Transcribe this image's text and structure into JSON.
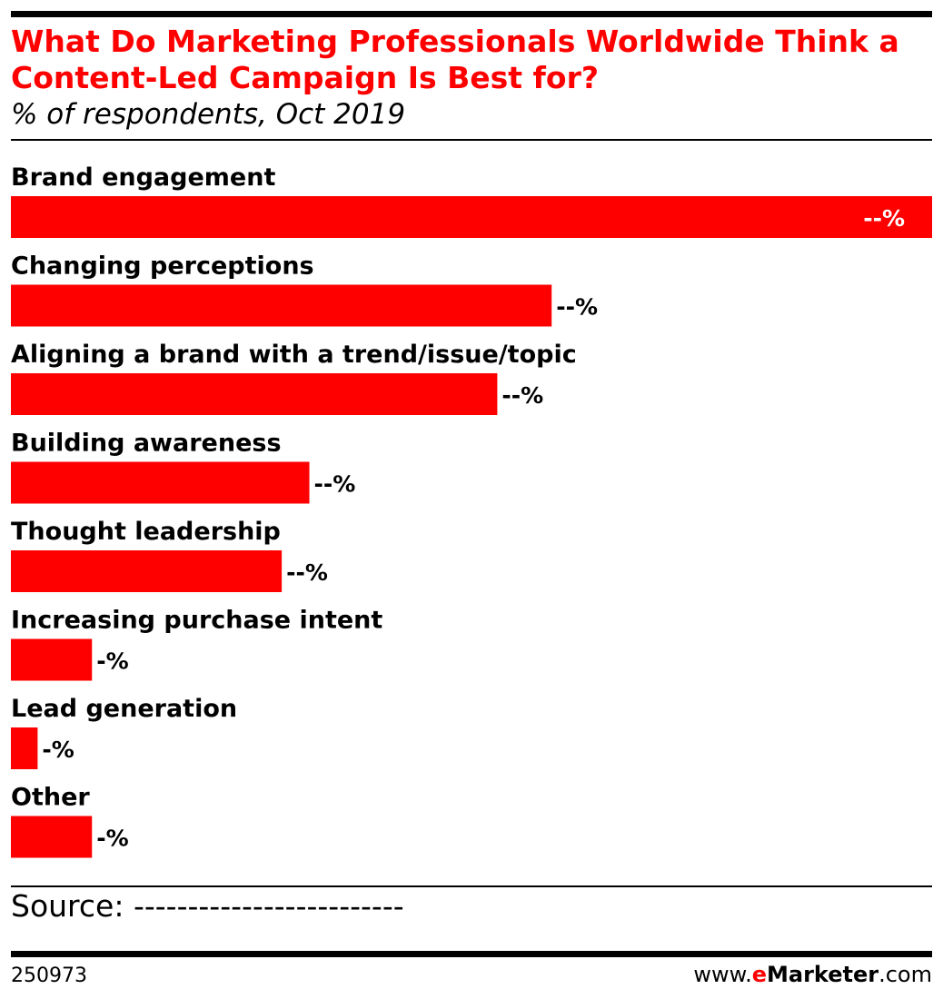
{
  "header": {
    "title": "What Do Marketing Professionals Worldwide Think a Content-Led Campaign Is Best for?",
    "subtitle": "% of respondents, Oct 2019"
  },
  "footer": {
    "source": "Source: -------------------------",
    "chart_id": "250973",
    "brand_prefix": "www.",
    "brand_e": "e",
    "brand_name": "Marketer",
    "brand_suffix": ".com"
  },
  "colors": {
    "bar": "#ff0000",
    "title": "#ff0000",
    "text": "#000000"
  },
  "chart_data": {
    "type": "bar",
    "orientation": "horizontal",
    "title": "What Do Marketing Professionals Worldwide Think a Content-Led Campaign Is Best for?",
    "subtitle": "% of respondents, Oct 2019",
    "categories": [
      "Brand engagement",
      "Changing perceptions",
      "Aligning a brand with a trend/issue/topic",
      "Building awareness",
      "Thought leadership",
      "Increasing purchase intent",
      "Lead generation",
      "Other"
    ],
    "values": [
      100,
      58.7,
      52.8,
      32.4,
      29.4,
      8.8,
      2.9,
      8.8
    ],
    "value_labels": [
      "--%",
      "--%",
      "--%",
      "--%",
      "--%",
      "-%",
      "-%",
      "-%"
    ],
    "xlim": [
      0,
      100
    ],
    "grid": false,
    "legend": "none"
  }
}
